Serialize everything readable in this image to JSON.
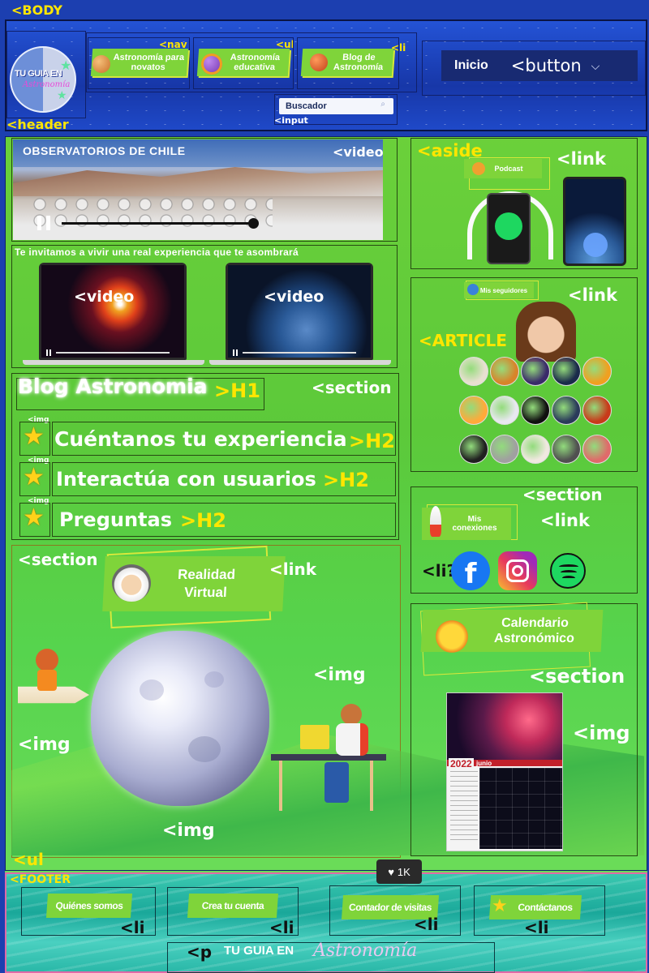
{
  "tags": {
    "body": "<BODY",
    "header": "<header",
    "nav": "<nav",
    "ul": "<ul",
    "li": "<li",
    "input": "<input",
    "button": "<button",
    "video": "<video",
    "h1": ">H1",
    "h2": ">H2",
    "section": "<section",
    "img": "<img",
    "aside": "<aside",
    "link": "<link",
    "article": "<ARTICLE",
    "li_q": "<li?",
    "footer": "<FOOTER",
    "p": "<p"
  },
  "header": {
    "logo_line1": "TU GUIA EN",
    "logo_line2": "Astronomía",
    "nav_items": [
      "Astronomía para novatos",
      "Astronomía educativa",
      "Blog de Astronomía"
    ],
    "search_placeholder": "Buscador",
    "button_label": "Inicio"
  },
  "main": {
    "video_title": "OBSERVATORIOS DE  CHILE",
    "invite_text": "Te invitamos a vivir una real experiencia que te asombrará",
    "blog_title": "Blog Astronomia",
    "h2_items": [
      "Cuéntanos tu experiencia",
      "Interactúa con usuarios",
      "Preguntas"
    ],
    "vr_label": "Realidad Virtual"
  },
  "aside": {
    "podcast_label": "Podcast",
    "followers_label": "Mis seguidores",
    "connections_label": "Mis conexiones",
    "calendar_label": "Calendario Astronómico",
    "calendar_year": "2022",
    "calendar_month": "junio"
  },
  "footer": {
    "items": [
      "Quiénes somos",
      "Crea tu cuenta",
      "Contador de visitas",
      "Contáctanos"
    ],
    "likes": "1K",
    "brand_line1": "TU GUIA EN",
    "brand_line2": "Astronomía"
  },
  "colors": {
    "header_blue": "#1f49c8",
    "main_green": "#5cc93a",
    "pill_green": "#7fd43a",
    "tag_yellow": "#ffe600",
    "footer_teal": "#2bb39c"
  }
}
